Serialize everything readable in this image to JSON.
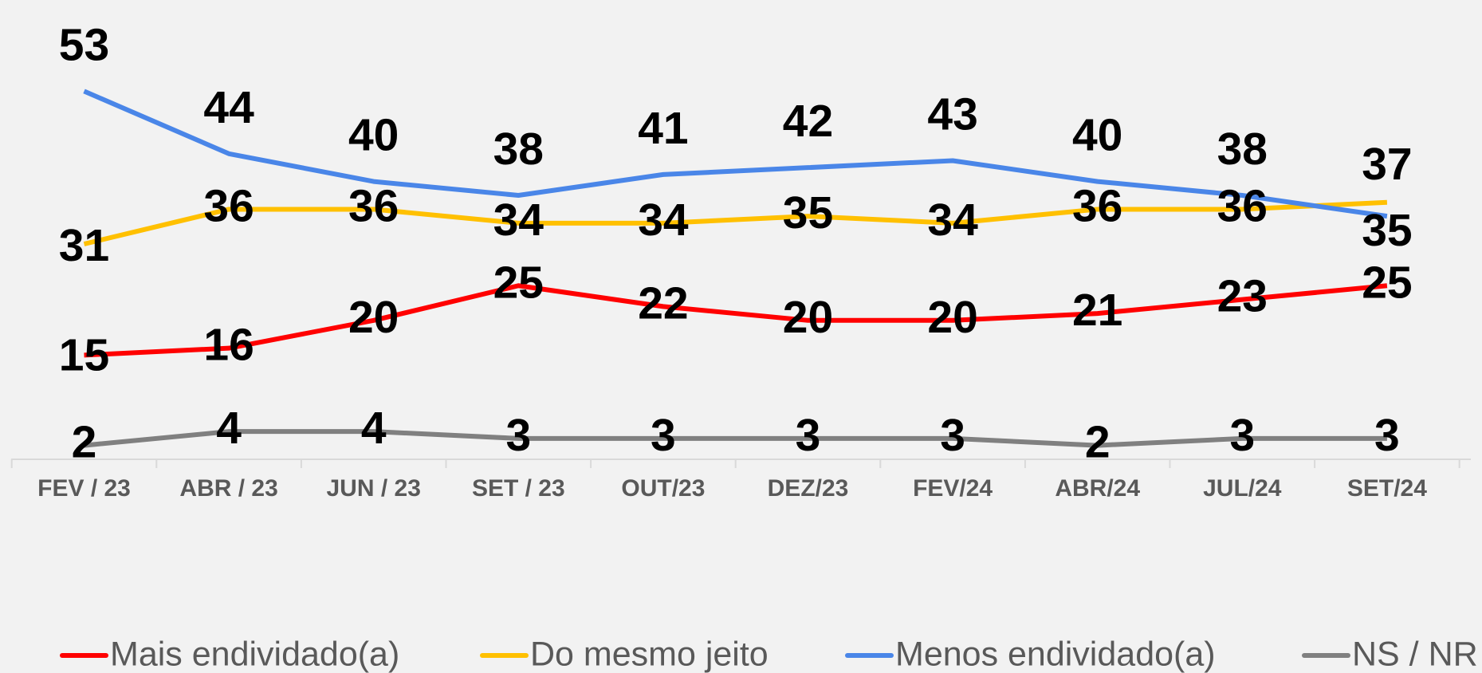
{
  "chart_data": {
    "type": "line",
    "categories": [
      "FEV / 23",
      "ABR / 23",
      "JUN / 23",
      "SET / 23",
      "OUT/23",
      "DEZ/23",
      "FEV/24",
      "ABR/24",
      "JUL/24",
      "SET/24"
    ],
    "series": [
      {
        "name": "Mais endividado(a)",
        "color": "#ff0000",
        "values": [
          15,
          16,
          20,
          25,
          22,
          20,
          20,
          21,
          23,
          25
        ]
      },
      {
        "name": "Do mesmo jeito",
        "color": "#ffc000",
        "values": [
          31,
          36,
          36,
          34,
          34,
          35,
          34,
          36,
          36,
          37
        ]
      },
      {
        "name": "Menos endividado(a)",
        "color": "#4a86e8",
        "values": [
          53,
          44,
          40,
          38,
          41,
          42,
          43,
          40,
          38,
          35
        ]
      },
      {
        "name": "NS / NR",
        "color": "#808080",
        "values": [
          2,
          4,
          4,
          3,
          3,
          3,
          3,
          2,
          3,
          3
        ]
      }
    ],
    "legend": "bottom"
  }
}
